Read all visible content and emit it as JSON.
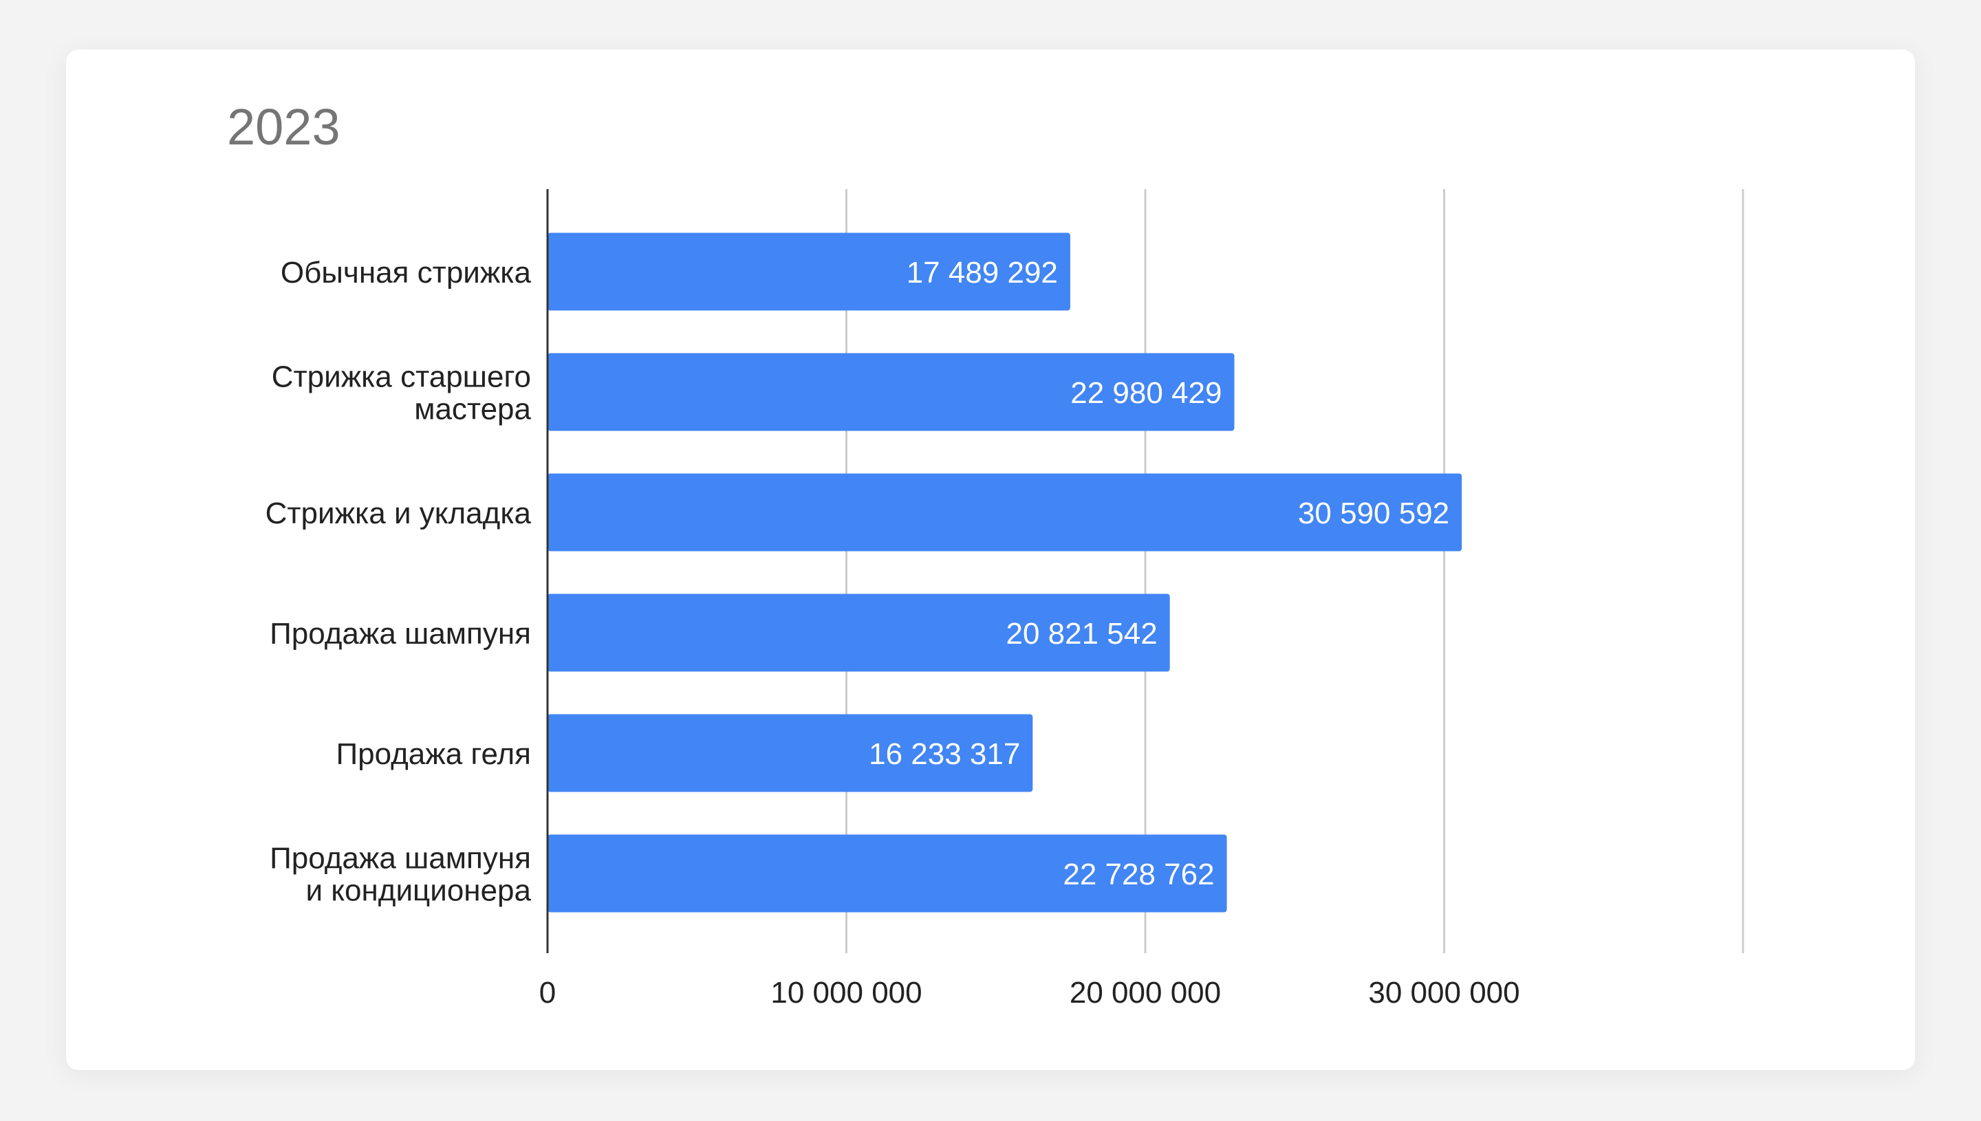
{
  "chart_data": {
    "type": "bar",
    "orientation": "horizontal",
    "title": "2023",
    "xlabel": "",
    "ylabel": "",
    "categories": [
      [
        "Обычная стрижка"
      ],
      [
        "Стрижка старшего",
        "мастера"
      ],
      [
        "Стрижка и укладка"
      ],
      [
        "Продажа шампуня"
      ],
      [
        "Продажа геля"
      ],
      [
        "Продажа шампуня",
        "и кондиционера"
      ]
    ],
    "values": [
      17489292,
      22980429,
      30590592,
      20821542,
      16233317,
      22728762
    ],
    "value_labels": [
      "17 489 292",
      "22 980 429",
      "30 590 592",
      "20 821 542",
      "16 233 317",
      "22 728 762"
    ],
    "xlim": [
      0,
      40000000
    ],
    "xticks": [
      0,
      10000000,
      20000000,
      30000000,
      40000000
    ],
    "xtick_labels": [
      "0",
      "10 000 000",
      "20 000 000",
      "30 000 000",
      ""
    ],
    "grid": true,
    "legend": "none",
    "bar_color": "#4285f4"
  }
}
